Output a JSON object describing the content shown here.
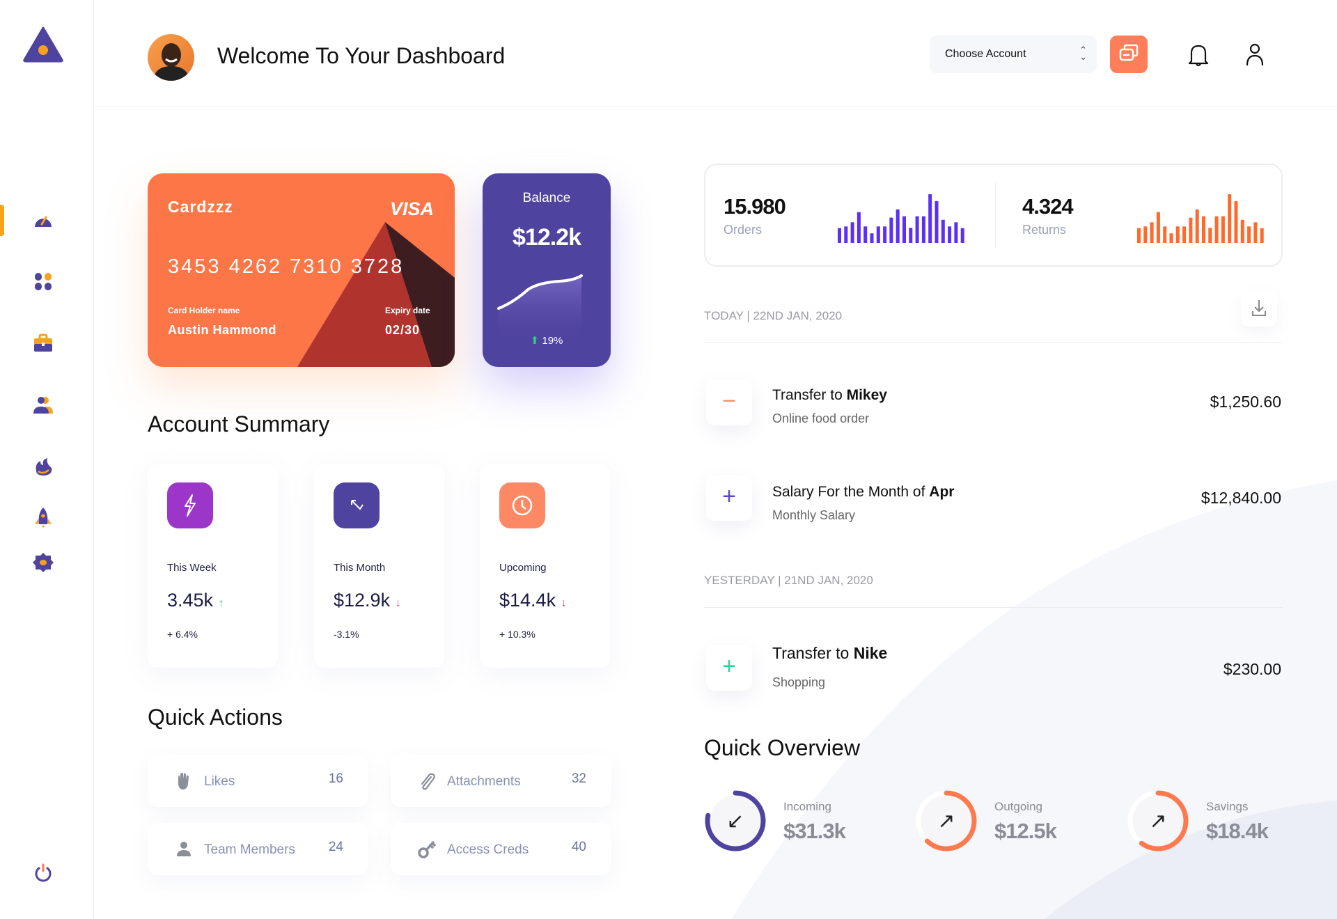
{
  "header": {
    "title": "Welcome To Your Dashboard",
    "account_select": {
      "value": "Choose Account"
    }
  },
  "sidebar": {
    "items": [
      "dashboard-icon",
      "apps-icon",
      "briefcase-icon",
      "users-icon",
      "fire-icon",
      "rocket-icon",
      "settings-icon"
    ],
    "active": "dashboard",
    "logout": "power-icon"
  },
  "card": {
    "brand": "Cardzzz",
    "network": "VISA",
    "number": "3453 4262 7310 3728",
    "holder_label": "Card Holder name",
    "holder": "Austin Hammond",
    "expiry_label": "Expiry date",
    "expiry": "02/30"
  },
  "balance": {
    "label": "Balance",
    "value": "$12.2k",
    "change": "19%"
  },
  "account_summary": {
    "title": "Account Summary",
    "items": [
      {
        "label": "This Week",
        "value": "3.45k",
        "pct": "+ 6.4%",
        "trend": "up",
        "color": "#9b36c9"
      },
      {
        "label": "This Month",
        "value": "$12.9k",
        "pct": "-3.1%",
        "trend": "down",
        "color": "#4f43a0"
      },
      {
        "label": "Upcoming",
        "value": "$14.4k",
        "pct": "+ 10.3%",
        "trend": "down",
        "color": "#fc8864"
      }
    ]
  },
  "quick_actions": {
    "title": "Quick Actions",
    "items": [
      {
        "label": "Likes",
        "count": "16"
      },
      {
        "label": "Attachments",
        "count": "32"
      },
      {
        "label": "Team Members",
        "count": "24"
      },
      {
        "label": "Access Creds",
        "count": "40"
      }
    ]
  },
  "stats": {
    "orders": {
      "value": "15.980",
      "label": "Orders",
      "color": "#5b2ff5",
      "bars": [
        54,
        60,
        75,
        112,
        60,
        35,
        60,
        60,
        92,
        122,
        97,
        55,
        97,
        97,
        177,
        152,
        84,
        60,
        75,
        54
      ]
    },
    "returns": {
      "value": "4.324",
      "label": "Returns",
      "color": "#fd6a2b",
      "bars": [
        54,
        60,
        75,
        112,
        60,
        35,
        60,
        60,
        92,
        122,
        97,
        55,
        97,
        97,
        177,
        152,
        84,
        60,
        75,
        54
      ]
    }
  },
  "transactions": {
    "today_label": "TODAY | 22ND JAN, 2020",
    "yesterday_label": "YESTERDAY | 21ND JAN, 2020",
    "items": [
      {
        "prefix": "Transfer to ",
        "bold": "Mikey",
        "sub": "Online food order",
        "amount": "$1,250.60",
        "sign": "−",
        "color": "#fc8864"
      },
      {
        "prefix": "Salary For the Month of ",
        "bold": "Apr",
        "sub": "Monthly Salary",
        "amount": "$12,840.00",
        "sign": "+",
        "color": "#5a4ac0"
      },
      {
        "prefix": "Transfer to ",
        "bold": "Nike",
        "sub": "Shopping",
        "amount": "$230.00",
        "sign": "+",
        "color": "#2fcf9e"
      }
    ]
  },
  "quick_overview": {
    "title": "Quick Overview",
    "items": [
      {
        "label": "Incoming",
        "value": "$31.3k",
        "progress": 0.78,
        "color": "#4f43a0",
        "arrow": "↙"
      },
      {
        "label": "Outgoing",
        "value": "$12.5k",
        "progress": 0.62,
        "color": "#fd7a4e",
        "arrow": "↗"
      },
      {
        "label": "Savings",
        "value": "$18.4k",
        "progress": 0.6,
        "color": "#fd7a4e",
        "arrow": "↗"
      }
    ]
  }
}
